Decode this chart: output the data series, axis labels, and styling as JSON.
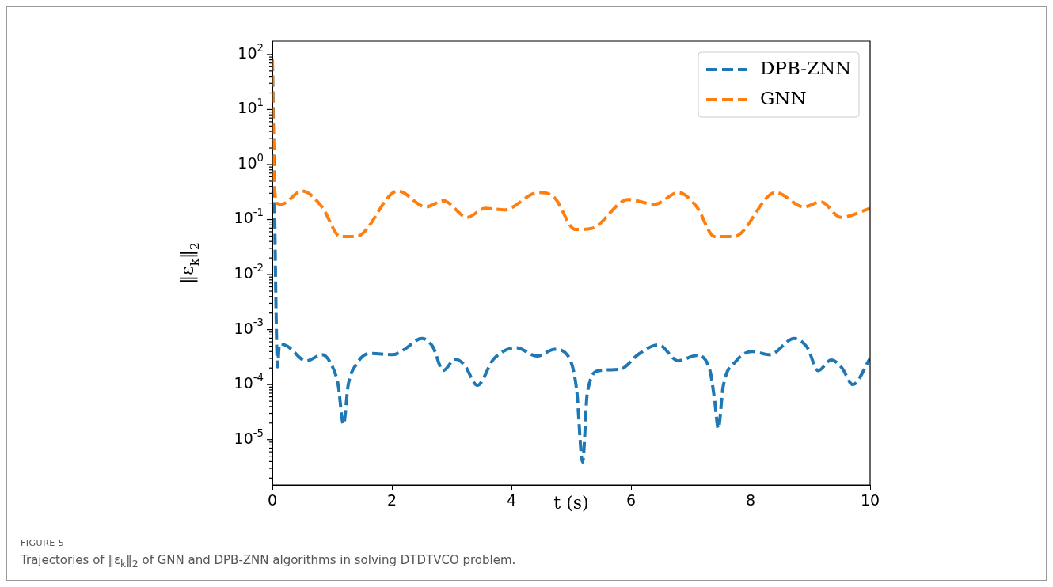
{
  "chart_data": {
    "type": "line",
    "xlabel": "t (s)",
    "ylabel": "‖ε$_{k}$‖$_{2}$",
    "xlim": [
      0,
      10
    ],
    "xticks": [
      0,
      2,
      4,
      6,
      8,
      10
    ],
    "log": "y",
    "ylim": [
      1.5e-06,
      175
    ],
    "yticks": [
      {
        "value": 1e-05,
        "label": "10$^{-5}$"
      },
      {
        "value": 0.0001,
        "label": "10$^{-4}$"
      },
      {
        "value": 0.001,
        "label": "10$^{-3}$"
      },
      {
        "value": 0.01,
        "label": "10$^{-2}$"
      },
      {
        "value": 0.1,
        "label": "10$^{-1}$"
      },
      {
        "value": 1,
        "label": "10$^{0}$"
      },
      {
        "value": 10,
        "label": "10$^{1}$"
      },
      {
        "value": 100,
        "label": "10$^{2}$"
      },
      {
        "value": 2e-06,
        "label": null
      },
      {
        "value": 3e-06,
        "label": null
      },
      {
        "value": 4e-06,
        "label": null
      },
      {
        "value": 5e-06,
        "label": null
      },
      {
        "value": 6e-06,
        "label": null
      },
      {
        "value": 7e-06,
        "label": null
      },
      {
        "value": 8e-06,
        "label": null
      },
      {
        "value": 9e-06,
        "label": null
      },
      {
        "value": 2e-05,
        "label": null
      },
      {
        "value": 3e-05,
        "label": null
      },
      {
        "value": 4e-05,
        "label": null
      },
      {
        "value": 5e-05,
        "label": null
      },
      {
        "value": 6e-05,
        "label": null
      },
      {
        "value": 7e-05,
        "label": null
      },
      {
        "value": 8e-05,
        "label": null
      },
      {
        "value": 9e-05,
        "label": null
      },
      {
        "value": 0.0002,
        "label": null
      },
      {
        "value": 0.0003,
        "label": null
      },
      {
        "value": 0.0004,
        "label": null
      },
      {
        "value": 0.0005,
        "label": null
      },
      {
        "value": 0.0006,
        "label": null
      },
      {
        "value": 0.0007,
        "label": null
      },
      {
        "value": 0.0008,
        "label": null
      },
      {
        "value": 0.0009,
        "label": null
      },
      {
        "value": 0.002,
        "label": null
      },
      {
        "value": 0.003,
        "label": null
      },
      {
        "value": 0.004,
        "label": null
      },
      {
        "value": 0.005,
        "label": null
      },
      {
        "value": 0.006,
        "label": null
      },
      {
        "value": 0.007,
        "label": null
      },
      {
        "value": 0.008,
        "label": null
      },
      {
        "value": 0.009,
        "label": null
      },
      {
        "value": 0.02,
        "label": null
      },
      {
        "value": 0.03,
        "label": null
      },
      {
        "value": 0.04,
        "label": null
      },
      {
        "value": 0.05,
        "label": null
      },
      {
        "value": 0.06,
        "label": null
      },
      {
        "value": 0.07,
        "label": null
      },
      {
        "value": 0.08,
        "label": null
      },
      {
        "value": 0.09,
        "label": null
      },
      {
        "value": 0.2,
        "label": null
      },
      {
        "value": 0.3,
        "label": null
      },
      {
        "value": 0.4,
        "label": null
      },
      {
        "value": 0.5,
        "label": null
      },
      {
        "value": 0.6,
        "label": null
      },
      {
        "value": 0.7,
        "label": null
      },
      {
        "value": 0.8,
        "label": null
      },
      {
        "value": 0.9,
        "label": null
      },
      {
        "value": 2,
        "label": null
      },
      {
        "value": 3,
        "label": null
      },
      {
        "value": 4,
        "label": null
      },
      {
        "value": 5,
        "label": null
      },
      {
        "value": 6,
        "label": null
      },
      {
        "value": 7,
        "label": null
      },
      {
        "value": 8,
        "label": null
      },
      {
        "value": 9,
        "label": null
      },
      {
        "value": 20,
        "label": null
      },
      {
        "value": 30,
        "label": null
      },
      {
        "value": 40,
        "label": null
      },
      {
        "value": 50,
        "label": null
      },
      {
        "value": 60,
        "label": null
      },
      {
        "value": 70,
        "label": null
      },
      {
        "value": 80,
        "label": null
      },
      {
        "value": 90,
        "label": null
      }
    ],
    "grid": false,
    "legend": "top right",
    "line_style": "dashed",
    "marker": "none",
    "series": [
      {
        "name": "DPB-ZNN",
        "color": "#1f77b4",
        "x": [
          0,
          0.02,
          0.04,
          0.06,
          0.085,
          0.12,
          0.25,
          0.57,
          0.83,
          0.98,
          1.1,
          1.19,
          1.27,
          1.4,
          1.63,
          2.02,
          2.2,
          2.5,
          2.68,
          2.86,
          3.06,
          3.21,
          3.43,
          3.7,
          4.08,
          4.43,
          4.72,
          4.94,
          5.09,
          5.19,
          5.27,
          5.47,
          5.82,
          6.13,
          6.46,
          6.79,
          7.1,
          7.32,
          7.4,
          7.46,
          7.54,
          7.76,
          8.03,
          8.32,
          8.73,
          8.95,
          9.13,
          9.35,
          9.53,
          9.71,
          10
        ],
        "values": [
          80,
          3,
          0.1,
          0.003,
          0.00021,
          0.00055,
          0.0005,
          0.00027,
          0.00035,
          0.00024,
          0.0001,
          1.9e-05,
          0.0001,
          0.00023,
          0.00037,
          0.00035,
          0.00043,
          0.00069,
          0.0005,
          0.00018,
          0.00029,
          0.00023,
          9.7e-05,
          0.00029,
          0.00047,
          0.00033,
          0.00044,
          0.00034,
          8.1e-05,
          3.9e-06,
          7.2e-05,
          0.00018,
          0.00019,
          0.00036,
          0.00053,
          0.00027,
          0.00034,
          0.00018,
          5.1e-05,
          1.6e-05,
          9e-05,
          0.00027,
          0.0004,
          0.00035,
          0.00069,
          0.00047,
          0.00018,
          0.00028,
          0.0002,
          0.0001,
          0.0003
        ]
      },
      {
        "name": "GNN",
        "color": "#ff7f0e",
        "x": [
          0,
          0.02,
          0.04,
          0.07,
          0.15,
          0.5,
          0.83,
          1.14,
          1.4,
          2.1,
          2.57,
          2.86,
          3.26,
          3.56,
          3.88,
          4.45,
          4.72,
          5.07,
          5.34,
          5.95,
          6.4,
          6.79,
          7.1,
          7.4,
          7.72,
          8.42,
          8.89,
          9.18,
          9.51,
          10
        ],
        "values": [
          80,
          1,
          0.35,
          0.2,
          0.19,
          0.33,
          0.17,
          0.049,
          0.049,
          0.33,
          0.17,
          0.22,
          0.11,
          0.16,
          0.15,
          0.31,
          0.25,
          0.066,
          0.069,
          0.23,
          0.19,
          0.31,
          0.17,
          0.049,
          0.049,
          0.31,
          0.17,
          0.21,
          0.11,
          0.16
        ]
      }
    ],
    "annotations": [
      "FIGURE 5",
      "Trajectories of ‖ε$_{k}$‖$_{2}$ of GNN and DPB-ZNN algorithms in solving DTDTVCO problem."
    ]
  }
}
